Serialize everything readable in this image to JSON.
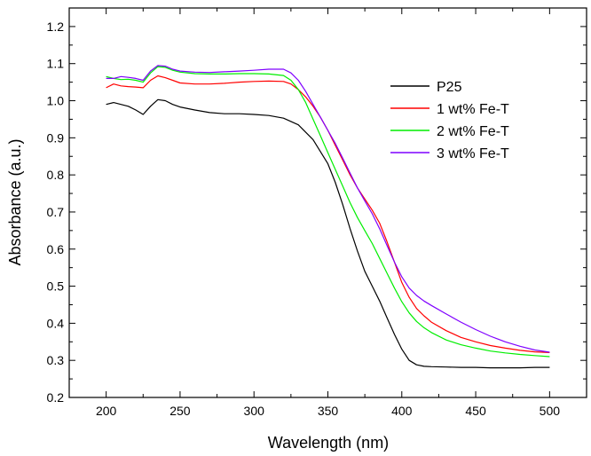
{
  "chart_data": {
    "type": "line",
    "title": "",
    "xlabel": "Wavelength (nm)",
    "ylabel": "Absorbance (a.u.)",
    "xlim": [
      175,
      525
    ],
    "ylim": [
      0.2,
      1.25
    ],
    "xticks": [
      200,
      250,
      300,
      350,
      400,
      450,
      500
    ],
    "yticks": [
      0.2,
      0.3,
      0.4,
      0.5,
      0.6,
      0.7,
      0.8,
      0.9,
      1.0,
      1.1,
      1.2
    ],
    "xtick_labels": [
      "200",
      "250",
      "300",
      "350",
      "400",
      "450",
      "500"
    ],
    "ytick_labels": [
      "0.2",
      "0.3",
      "0.4",
      "0.5",
      "0.6",
      "0.7",
      "0.8",
      "0.9",
      "1.0",
      "1.1",
      "1.2"
    ],
    "grid": false,
    "legend_position": "top-right",
    "series": [
      {
        "name": "P25",
        "color": "#000000",
        "points": [
          [
            200,
            0.99
          ],
          [
            205,
            0.995
          ],
          [
            210,
            0.99
          ],
          [
            215,
            0.985
          ],
          [
            220,
            0.975
          ],
          [
            225,
            0.963
          ],
          [
            230,
            0.985
          ],
          [
            235,
            1.003
          ],
          [
            240,
            1.0
          ],
          [
            245,
            0.99
          ],
          [
            250,
            0.983
          ],
          [
            260,
            0.975
          ],
          [
            270,
            0.968
          ],
          [
            280,
            0.965
          ],
          [
            290,
            0.965
          ],
          [
            300,
            0.963
          ],
          [
            310,
            0.96
          ],
          [
            320,
            0.953
          ],
          [
            330,
            0.935
          ],
          [
            340,
            0.895
          ],
          [
            350,
            0.83
          ],
          [
            355,
            0.78
          ],
          [
            360,
            0.72
          ],
          [
            365,
            0.655
          ],
          [
            370,
            0.595
          ],
          [
            375,
            0.54
          ],
          [
            380,
            0.5
          ],
          [
            385,
            0.46
          ],
          [
            390,
            0.415
          ],
          [
            395,
            0.37
          ],
          [
            400,
            0.33
          ],
          [
            405,
            0.3
          ],
          [
            410,
            0.288
          ],
          [
            415,
            0.284
          ],
          [
            420,
            0.283
          ],
          [
            430,
            0.282
          ],
          [
            440,
            0.281
          ],
          [
            450,
            0.281
          ],
          [
            460,
            0.28
          ],
          [
            470,
            0.28
          ],
          [
            480,
            0.28
          ],
          [
            490,
            0.281
          ],
          [
            500,
            0.281
          ]
        ]
      },
      {
        "name": "1 wt% Fe-T",
        "color": "#ff0000",
        "points": [
          [
            200,
            1.035
          ],
          [
            205,
            1.045
          ],
          [
            210,
            1.04
          ],
          [
            215,
            1.038
          ],
          [
            220,
            1.037
          ],
          [
            225,
            1.035
          ],
          [
            230,
            1.055
          ],
          [
            235,
            1.067
          ],
          [
            240,
            1.062
          ],
          [
            245,
            1.055
          ],
          [
            250,
            1.048
          ],
          [
            260,
            1.045
          ],
          [
            270,
            1.045
          ],
          [
            280,
            1.047
          ],
          [
            290,
            1.05
          ],
          [
            300,
            1.052
          ],
          [
            310,
            1.053
          ],
          [
            320,
            1.052
          ],
          [
            325,
            1.045
          ],
          [
            330,
            1.03
          ],
          [
            335,
            1.01
          ],
          [
            340,
            0.985
          ],
          [
            345,
            0.955
          ],
          [
            350,
            0.92
          ],
          [
            355,
            0.88
          ],
          [
            360,
            0.84
          ],
          [
            365,
            0.8
          ],
          [
            370,
            0.765
          ],
          [
            375,
            0.735
          ],
          [
            380,
            0.705
          ],
          [
            385,
            0.67
          ],
          [
            390,
            0.62
          ],
          [
            395,
            0.565
          ],
          [
            400,
            0.51
          ],
          [
            405,
            0.47
          ],
          [
            410,
            0.44
          ],
          [
            415,
            0.42
          ],
          [
            420,
            0.403
          ],
          [
            430,
            0.38
          ],
          [
            440,
            0.362
          ],
          [
            450,
            0.35
          ],
          [
            460,
            0.34
          ],
          [
            470,
            0.333
          ],
          [
            480,
            0.327
          ],
          [
            490,
            0.323
          ],
          [
            500,
            0.321
          ]
        ]
      },
      {
        "name": "2 wt% Fe-T",
        "color": "#00ee00",
        "points": [
          [
            200,
            1.065
          ],
          [
            205,
            1.06
          ],
          [
            210,
            1.057
          ],
          [
            215,
            1.058
          ],
          [
            220,
            1.055
          ],
          [
            225,
            1.05
          ],
          [
            230,
            1.075
          ],
          [
            235,
            1.092
          ],
          [
            240,
            1.09
          ],
          [
            245,
            1.082
          ],
          [
            250,
            1.077
          ],
          [
            260,
            1.073
          ],
          [
            270,
            1.072
          ],
          [
            280,
            1.072
          ],
          [
            290,
            1.073
          ],
          [
            300,
            1.073
          ],
          [
            310,
            1.072
          ],
          [
            320,
            1.068
          ],
          [
            325,
            1.055
          ],
          [
            330,
            1.03
          ],
          [
            335,
            0.995
          ],
          [
            340,
            0.95
          ],
          [
            345,
            0.905
          ],
          [
            350,
            0.86
          ],
          [
            355,
            0.815
          ],
          [
            360,
            0.77
          ],
          [
            365,
            0.725
          ],
          [
            370,
            0.685
          ],
          [
            375,
            0.65
          ],
          [
            380,
            0.615
          ],
          [
            385,
            0.575
          ],
          [
            390,
            0.535
          ],
          [
            395,
            0.495
          ],
          [
            400,
            0.458
          ],
          [
            405,
            0.428
          ],
          [
            410,
            0.405
          ],
          [
            415,
            0.388
          ],
          [
            420,
            0.375
          ],
          [
            430,
            0.355
          ],
          [
            440,
            0.342
          ],
          [
            450,
            0.333
          ],
          [
            460,
            0.325
          ],
          [
            470,
            0.32
          ],
          [
            480,
            0.316
          ],
          [
            490,
            0.313
          ],
          [
            500,
            0.31
          ]
        ]
      },
      {
        "name": "3 wt% Fe-T",
        "color": "#7f00ff",
        "points": [
          [
            200,
            1.06
          ],
          [
            205,
            1.06
          ],
          [
            210,
            1.065
          ],
          [
            215,
            1.063
          ],
          [
            220,
            1.06
          ],
          [
            225,
            1.055
          ],
          [
            230,
            1.08
          ],
          [
            235,
            1.095
          ],
          [
            240,
            1.093
          ],
          [
            245,
            1.085
          ],
          [
            250,
            1.08
          ],
          [
            260,
            1.077
          ],
          [
            270,
            1.076
          ],
          [
            280,
            1.078
          ],
          [
            290,
            1.08
          ],
          [
            300,
            1.082
          ],
          [
            310,
            1.085
          ],
          [
            320,
            1.085
          ],
          [
            325,
            1.075
          ],
          [
            330,
            1.055
          ],
          [
            335,
            1.025
          ],
          [
            340,
            0.99
          ],
          [
            345,
            0.955
          ],
          [
            350,
            0.92
          ],
          [
            355,
            0.885
          ],
          [
            360,
            0.845
          ],
          [
            365,
            0.805
          ],
          [
            370,
            0.765
          ],
          [
            375,
            0.73
          ],
          [
            380,
            0.695
          ],
          [
            385,
            0.655
          ],
          [
            390,
            0.61
          ],
          [
            395,
            0.565
          ],
          [
            400,
            0.525
          ],
          [
            405,
            0.495
          ],
          [
            410,
            0.475
          ],
          [
            415,
            0.46
          ],
          [
            420,
            0.448
          ],
          [
            430,
            0.425
          ],
          [
            440,
            0.403
          ],
          [
            450,
            0.383
          ],
          [
            460,
            0.365
          ],
          [
            470,
            0.35
          ],
          [
            480,
            0.338
          ],
          [
            490,
            0.328
          ],
          [
            500,
            0.322
          ]
        ]
      }
    ]
  }
}
